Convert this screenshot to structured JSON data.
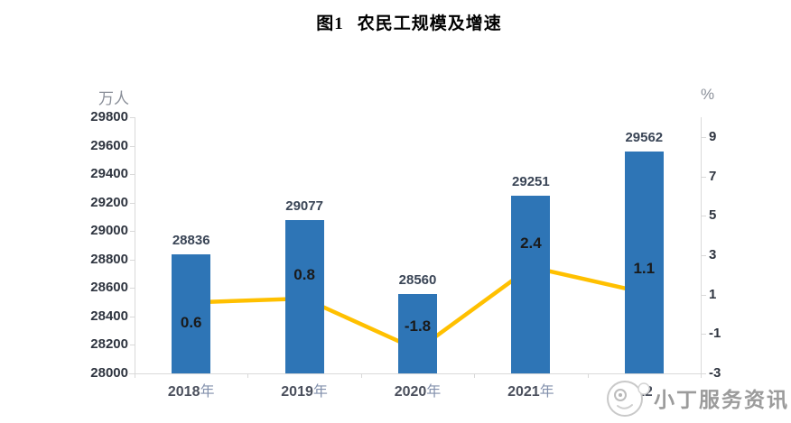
{
  "title": {
    "prefix": "图1",
    "main": "农民工规模及增速"
  },
  "watermark": {
    "text": "小丁服务资讯"
  },
  "chart_data": {
    "type": "combo",
    "subtypes": [
      "bar",
      "line"
    ],
    "title": "图1 农民工规模及增速",
    "categories": [
      "2018年",
      "2019年",
      "2020年",
      "2021年",
      "2022年"
    ],
    "series": [
      {
        "type": "bar",
        "axis": "left",
        "unit": "万人",
        "values": [
          28836,
          29077,
          28560,
          29251,
          29562
        ],
        "color": "#2E75B6"
      },
      {
        "type": "line",
        "axis": "right",
        "unit": "%",
        "values": [
          0.6,
          0.8,
          -1.8,
          2.4,
          1.1
        ],
        "color": "#FFC000",
        "marker": "square",
        "label_side": [
          "below",
          "above",
          "above",
          "above",
          "above"
        ]
      }
    ],
    "left_axis": {
      "label": "万人",
      "min": 28000,
      "max": 29800,
      "step": 200,
      "ticks": [
        29800,
        29600,
        29400,
        29200,
        29000,
        28800,
        28600,
        28400,
        28200,
        28000
      ]
    },
    "right_axis": {
      "label": "%",
      "min": -3,
      "top_value": 10,
      "ticks": [
        9,
        7,
        5,
        3,
        1,
        -1,
        -3
      ]
    },
    "grid": false,
    "legend": "none"
  },
  "colors": {
    "bar": "#2E75B6",
    "line": "#FFC000",
    "marker_border": "#E8E2CC",
    "axis_line": "#D9D9D9",
    "value_axis_label": "#2F3540",
    "bar_label": "#3A4556",
    "category_digits": "#4A4F5C",
    "category_cjk": "#8290AC",
    "line_label": "#1A1A1A",
    "axis_unit": "#8A8F99",
    "watermark_text": "#9B9B9B",
    "watermark_logo": "#C9C9C9",
    "title": "#000000"
  }
}
